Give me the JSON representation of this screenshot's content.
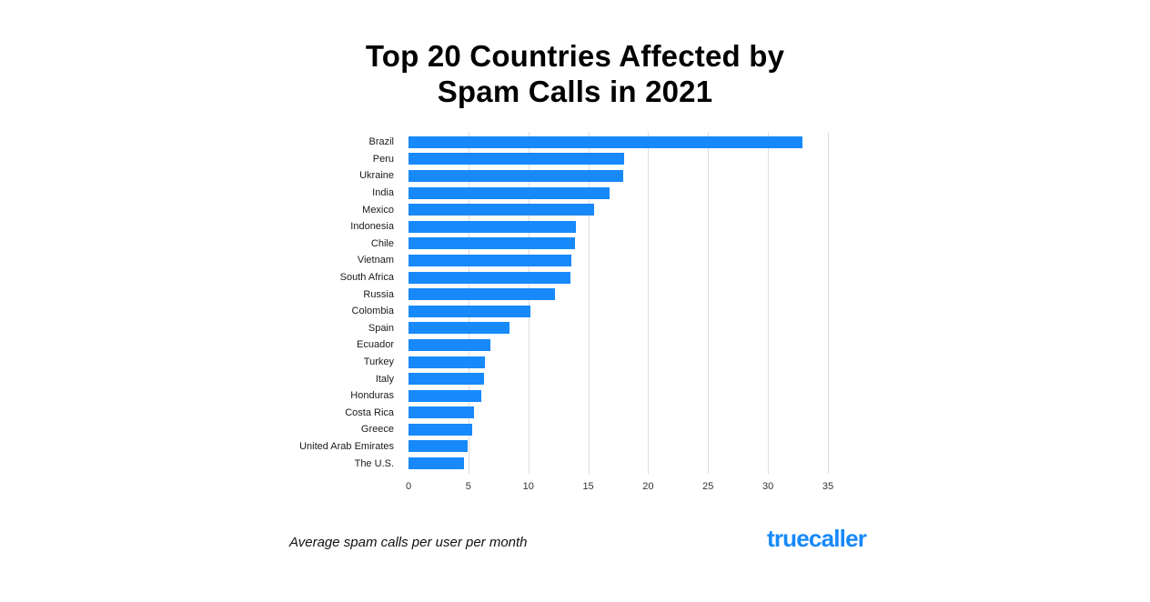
{
  "title": {
    "line1": "Top 20 Countries Affected by",
    "line2": "Spam Calls in 2021"
  },
  "footer": {
    "caption": "Average spam calls per user per month",
    "logo_text": "truecaller"
  },
  "colors": {
    "bar": "#1789FB",
    "grid": "#DDDDDD",
    "logo": "#1789FB",
    "text": "#000000"
  },
  "chart_data": {
    "type": "bar",
    "orientation": "horizontal",
    "title": "Top 20 Countries Affected by Spam Calls in 2021",
    "xlabel": "Average spam calls per user per month",
    "ylabel": "",
    "categories": [
      "Brazil",
      "Peru",
      "Ukraine",
      "India",
      "Mexico",
      "Indonesia",
      "Chile",
      "Vietnam",
      "South Africa",
      "Russia",
      "Colombia",
      "Spain",
      "Ecuador",
      "Turkey",
      "Italy",
      "Honduras",
      "Costa Rica",
      "Greece",
      "United Arab Emirates",
      "The U.S."
    ],
    "values": [
      32.9,
      18.0,
      17.9,
      16.8,
      15.5,
      14.0,
      13.9,
      13.6,
      13.5,
      12.2,
      10.2,
      8.4,
      6.8,
      6.4,
      6.3,
      6.1,
      5.5,
      5.3,
      4.9,
      4.6
    ],
    "xlim": [
      0,
      35
    ],
    "xticks": [
      0,
      5,
      10,
      15,
      20,
      25,
      30,
      35
    ],
    "grid": true,
    "legend": false
  }
}
